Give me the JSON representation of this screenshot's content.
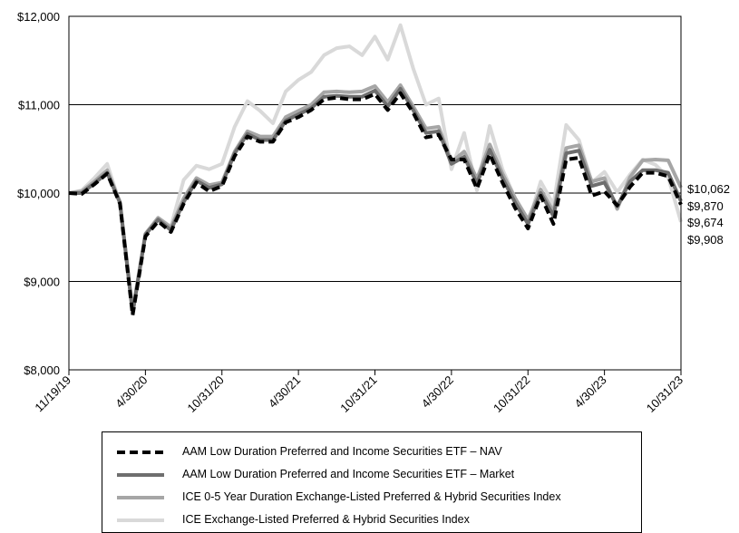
{
  "chart_data": {
    "type": "line",
    "title": "",
    "xlabel": "",
    "ylabel": "",
    "ylim": [
      8000,
      12000
    ],
    "y_ticks": [
      8000,
      9000,
      10000,
      11000,
      12000
    ],
    "y_tick_labels": [
      "$8,000",
      "$9,000",
      "$10,000",
      "$11,000",
      "$12,000"
    ],
    "x_tick_labels": [
      "11/19/19",
      "4/30/20",
      "10/31/20",
      "4/30/21",
      "10/31/21",
      "4/30/22",
      "10/31/22",
      "4/30/23",
      "10/31/23"
    ],
    "grid": "horizontal",
    "legend_position": "bottom",
    "end_labels": [
      "$10,062",
      "$9,870",
      "$9,674",
      "$9,908"
    ],
    "x": [
      "11/19/19",
      "11/30/19",
      "12/31/19",
      "1/31/20",
      "2/29/20",
      "3/31/20",
      "4/30/20",
      "5/31/20",
      "6/30/20",
      "7/31/20",
      "8/31/20",
      "9/30/20",
      "10/31/20",
      "11/30/20",
      "12/31/20",
      "1/31/21",
      "2/28/21",
      "3/31/21",
      "4/30/21",
      "5/31/21",
      "6/30/21",
      "7/31/21",
      "8/31/21",
      "9/30/21",
      "10/31/21",
      "11/30/21",
      "12/31/21",
      "1/31/22",
      "2/28/22",
      "3/31/22",
      "4/30/22",
      "5/31/22",
      "6/30/22",
      "7/31/22",
      "8/31/22",
      "9/30/22",
      "10/31/22",
      "11/30/22",
      "12/31/22",
      "1/31/23",
      "2/28/23",
      "3/31/23",
      "4/30/23",
      "5/31/23",
      "6/30/23",
      "7/31/23",
      "8/31/23",
      "9/30/23",
      "10/31/23"
    ],
    "series": [
      {
        "name": "AAM Low Duration Preferred and Income Securities ETF – NAV",
        "color": "#000000",
        "style": "dashed",
        "values": [
          10000,
          9990,
          10100,
          10220,
          9880,
          8620,
          9510,
          9680,
          9560,
          9880,
          10120,
          10020,
          10080,
          10420,
          10640,
          10580,
          10580,
          10800,
          10860,
          10940,
          11060,
          11080,
          11060,
          11060,
          11120,
          10940,
          11130,
          10910,
          10630,
          10660,
          10380,
          10380,
          10050,
          10440,
          10120,
          9830,
          9600,
          9970,
          9650,
          10380,
          10400,
          9970,
          10020,
          9860,
          10070,
          10230,
          10230,
          10190,
          9870
        ]
      },
      {
        "name": "AAM Low Duration Preferred and Income Securities ETF – Market",
        "color": "#6e6e6e",
        "style": "solid",
        "values": [
          10000,
          10000,
          10110,
          10230,
          9890,
          8640,
          9530,
          9700,
          9580,
          9900,
          10140,
          10060,
          10100,
          10450,
          10670,
          10600,
          10600,
          10820,
          10890,
          10960,
          11090,
          11100,
          11090,
          11090,
          11160,
          10980,
          11180,
          10940,
          10680,
          10700,
          10330,
          10410,
          10110,
          10490,
          10170,
          9890,
          9650,
          10000,
          9740,
          10450,
          10480,
          10080,
          10120,
          9850,
          10130,
          10260,
          10260,
          10230,
          9908
        ]
      },
      {
        "name": "ICE 0-5 Year Duration Exchange-Listed Preferred & Hybrid Securities Index",
        "color": "#a6a6a6",
        "style": "solid",
        "values": [
          10000,
          10020,
          10130,
          10260,
          9900,
          8660,
          9540,
          9720,
          9610,
          9940,
          10170,
          10090,
          10120,
          10470,
          10700,
          10640,
          10640,
          10860,
          10930,
          11000,
          11140,
          11150,
          11140,
          11150,
          11210,
          11030,
          11220,
          10980,
          10730,
          10750,
          10350,
          10470,
          10160,
          10550,
          10220,
          9940,
          9700,
          10040,
          9790,
          10510,
          10540,
          10130,
          10170,
          9820,
          10180,
          10370,
          10380,
          10370,
          10062
        ]
      },
      {
        "name": "ICE Exchange-Listed Preferred & Hybrid Securities Index",
        "color": "#d9d9d9",
        "style": "solid",
        "values": [
          10000,
          10030,
          10170,
          10330,
          9880,
          8680,
          9530,
          9720,
          9620,
          10150,
          10310,
          10270,
          10330,
          10750,
          11040,
          10930,
          10790,
          11150,
          11280,
          11370,
          11560,
          11640,
          11660,
          11560,
          11770,
          11510,
          11900,
          11410,
          11000,
          11070,
          10270,
          10680,
          10030,
          10760,
          10270,
          9940,
          9650,
          10130,
          9870,
          10770,
          10600,
          10120,
          10240,
          10010,
          10210,
          10380,
          10320,
          10180,
          9674
        ]
      }
    ]
  }
}
